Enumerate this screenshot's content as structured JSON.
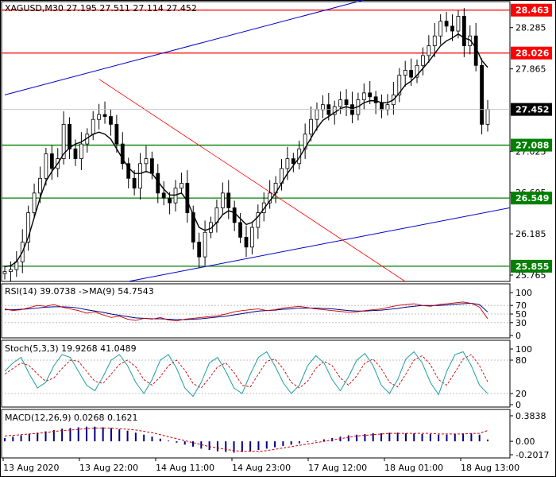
{
  "chart_data": [
    {
      "type": "candlestick",
      "symbol_header": "XAGUSD,M30  27.195 27.511 27.114 27.452",
      "y_ticks": [
        "28.285",
        "27.865",
        "27.025",
        "26.605",
        "26.185",
        "25.765"
      ],
      "x_labels": [
        "13 Aug 2020",
        "13 Aug 22:00",
        "14 Aug 11:00",
        "14 Aug 23:00",
        "17 Aug 12:00",
        "18 Aug 01:00",
        "18 Aug 13:00"
      ],
      "ylim": [
        25.7,
        28.55
      ],
      "levels": [
        {
          "value": 28.463,
          "label": "28.463",
          "color": "#ff0000"
        },
        {
          "value": 28.026,
          "label": "28.026",
          "color": "#ff0000"
        },
        {
          "value": 27.452,
          "label": "27.452",
          "color": "#000000"
        },
        {
          "value": 27.088,
          "label": "27.088",
          "color": "#008000"
        },
        {
          "value": 26.549,
          "label": "26.549",
          "color": "#008000"
        },
        {
          "value": 25.855,
          "label": "25.855",
          "color": "#008000"
        }
      ],
      "close_path": [
        25.8,
        25.82,
        25.9,
        26.1,
        26.4,
        26.6,
        26.75,
        27.0,
        26.85,
        26.95,
        27.3,
        27.05,
        26.95,
        27.1,
        27.2,
        27.35,
        27.4,
        27.38,
        27.3,
        27.1,
        26.9,
        26.75,
        26.65,
        26.9,
        26.95,
        26.8,
        26.6,
        26.55,
        26.5,
        26.65,
        26.7,
        26.4,
        26.1,
        25.95,
        26.2,
        26.3,
        26.45,
        26.6,
        26.45,
        26.3,
        26.15,
        26.05,
        26.25,
        26.4,
        26.5,
        26.6,
        26.7,
        26.85,
        26.95,
        26.9,
        27.05,
        27.2,
        27.35,
        27.45,
        27.5,
        27.4,
        27.48,
        27.55,
        27.5,
        27.4,
        27.55,
        27.62,
        27.58,
        27.52,
        27.45,
        27.5,
        27.6,
        27.8,
        27.85,
        27.78,
        27.9,
        28.0,
        28.1,
        28.2,
        28.35,
        28.3,
        28.25,
        28.4,
        28.1,
        28.2,
        27.9,
        27.3,
        27.452
      ],
      "ma_path": [
        25.85,
        25.86,
        25.9,
        26.0,
        26.15,
        26.35,
        26.55,
        26.72,
        26.82,
        26.9,
        27.0,
        27.06,
        27.1,
        27.12,
        27.16,
        27.2,
        27.22,
        27.2,
        27.15,
        27.05,
        26.95,
        26.86,
        26.8,
        26.8,
        26.82,
        26.8,
        26.72,
        26.64,
        26.58,
        26.58,
        26.6,
        26.52,
        26.38,
        26.25,
        26.22,
        26.24,
        26.3,
        26.38,
        26.42,
        26.4,
        26.34,
        26.28,
        26.3,
        26.36,
        26.44,
        26.52,
        26.6,
        26.7,
        26.8,
        26.88,
        26.96,
        27.06,
        27.16,
        27.26,
        27.34,
        27.38,
        27.42,
        27.46,
        27.48,
        27.46,
        27.48,
        27.52,
        27.54,
        27.54,
        27.52,
        27.52,
        27.55,
        27.62,
        27.7,
        27.74,
        27.8,
        27.87,
        27.94,
        28.02,
        28.1,
        28.15,
        28.18,
        28.22,
        28.18,
        28.16,
        28.08,
        27.95,
        27.88
      ]
    },
    {
      "type": "line",
      "title": "RSI(14) 39.0738  ->MA(9) 54.7543",
      "y_ticks": [
        "100",
        "70",
        "50",
        "30",
        "0"
      ],
      "ylim": [
        0,
        100
      ],
      "series": [
        {
          "values": [
            62,
            58,
            60,
            65,
            70,
            68,
            72,
            66,
            62,
            58,
            52,
            55,
            48,
            42,
            45,
            38,
            35,
            40,
            38,
            42,
            36,
            34,
            38,
            40,
            42,
            44,
            46,
            50,
            55,
            58,
            60,
            62,
            58,
            60,
            64,
            66,
            68,
            65,
            62,
            60,
            58,
            56,
            54,
            55,
            58,
            60,
            62,
            66,
            70,
            72,
            74,
            70,
            68,
            72,
            74,
            76,
            78,
            75,
            66,
            39
          ]
        },
        {
          "values": [
            60,
            60,
            61,
            62,
            64,
            66,
            67,
            67,
            66,
            64,
            60,
            57,
            54,
            50,
            47,
            44,
            41,
            40,
            39,
            39,
            38,
            37,
            37,
            38,
            39,
            41,
            43,
            45,
            48,
            51,
            54,
            57,
            58,
            59,
            61,
            62,
            64,
            64,
            64,
            63,
            62,
            60,
            58,
            57,
            57,
            58,
            59,
            61,
            63,
            66,
            68,
            70,
            70,
            70,
            71,
            73,
            74,
            75,
            72,
            54.75
          ]
        }
      ]
    },
    {
      "type": "line",
      "title": "Stoch(5,3,3) 19.9268 41.0489",
      "y_ticks": [
        "100",
        "80",
        "20",
        "0"
      ],
      "ylim": [
        0,
        100
      ],
      "series": [
        {
          "values": [
            60,
            75,
            85,
            55,
            30,
            40,
            70,
            90,
            85,
            60,
            35,
            25,
            50,
            80,
            90,
            70,
            40,
            20,
            45,
            80,
            90,
            65,
            30,
            15,
            40,
            75,
            85,
            60,
            30,
            20,
            55,
            85,
            95,
            70,
            40,
            20,
            35,
            70,
            88,
            75,
            45,
            25,
            50,
            80,
            92,
            70,
            35,
            20,
            45,
            82,
            95,
            75,
            40,
            18,
            60,
            90,
            95,
            70,
            35,
            19.93
          ]
        },
        {
          "values": [
            55,
            65,
            75,
            70,
            55,
            42,
            48,
            65,
            80,
            78,
            60,
            42,
            38,
            55,
            72,
            80,
            68,
            45,
            35,
            50,
            70,
            80,
            62,
            38,
            30,
            48,
            68,
            75,
            58,
            35,
            32,
            55,
            78,
            82,
            65,
            40,
            30,
            42,
            65,
            78,
            70,
            48,
            35,
            52,
            75,
            82,
            65,
            40,
            32,
            55,
            80,
            88,
            72,
            45,
            35,
            58,
            82,
            90,
            70,
            41.05
          ]
        }
      ]
    },
    {
      "type": "bar",
      "title": "MACD(12,26,9) 0.0268 0.1621",
      "y_ticks": [
        "0.3838",
        "0.00",
        "-0.2017"
      ],
      "ylim": [
        -0.2017,
        0.3838
      ],
      "series": [
        {
          "name": "MACD",
          "values": [
            0.05,
            0.07,
            0.09,
            0.11,
            0.13,
            0.15,
            0.17,
            0.19,
            0.2,
            0.21,
            0.22,
            0.22,
            0.21,
            0.2,
            0.18,
            0.16,
            0.13,
            0.1,
            0.07,
            0.04,
            0.01,
            -0.02,
            -0.05,
            -0.08,
            -0.11,
            -0.13,
            -0.15,
            -0.16,
            -0.17,
            -0.16,
            -0.15,
            -0.13,
            -0.11,
            -0.09,
            -0.07,
            -0.05,
            -0.03,
            -0.01,
            0.01,
            0.03,
            0.05,
            0.07,
            0.09,
            0.1,
            0.11,
            0.12,
            0.12,
            0.13,
            0.13,
            0.12,
            0.12,
            0.11,
            0.11,
            0.1,
            0.1,
            0.11,
            0.12,
            0.12,
            0.1,
            0.0268
          ]
        },
        {
          "name": "Signal",
          "values": [
            0.08,
            0.09,
            0.1,
            0.11,
            0.12,
            0.13,
            0.15,
            0.16,
            0.17,
            0.18,
            0.19,
            0.2,
            0.2,
            0.2,
            0.19,
            0.18,
            0.17,
            0.15,
            0.13,
            0.1,
            0.07,
            0.04,
            0.01,
            -0.02,
            -0.05,
            -0.08,
            -0.1,
            -0.12,
            -0.14,
            -0.15,
            -0.15,
            -0.15,
            -0.14,
            -0.12,
            -0.1,
            -0.08,
            -0.06,
            -0.04,
            -0.02,
            0.0,
            0.02,
            0.04,
            0.06,
            0.08,
            0.09,
            0.1,
            0.11,
            0.12,
            0.12,
            0.12,
            0.12,
            0.12,
            0.12,
            0.11,
            0.11,
            0.11,
            0.11,
            0.12,
            0.12,
            0.1621
          ]
        }
      ]
    }
  ],
  "colors": {
    "up_candle": "#000000",
    "down_candle": "#000000",
    "ma": "#000000",
    "resistance": "#ff0000",
    "support": "#008000",
    "channel": "#0000cc",
    "rsi": "#000080",
    "rsi_ma": "#cc0000",
    "stoch_main": "#20a0a0",
    "stoch_signal": "#cc0000",
    "macd_hist": "#000080",
    "macd_signal": "#cc0000",
    "grid": "#c0c0c0"
  }
}
